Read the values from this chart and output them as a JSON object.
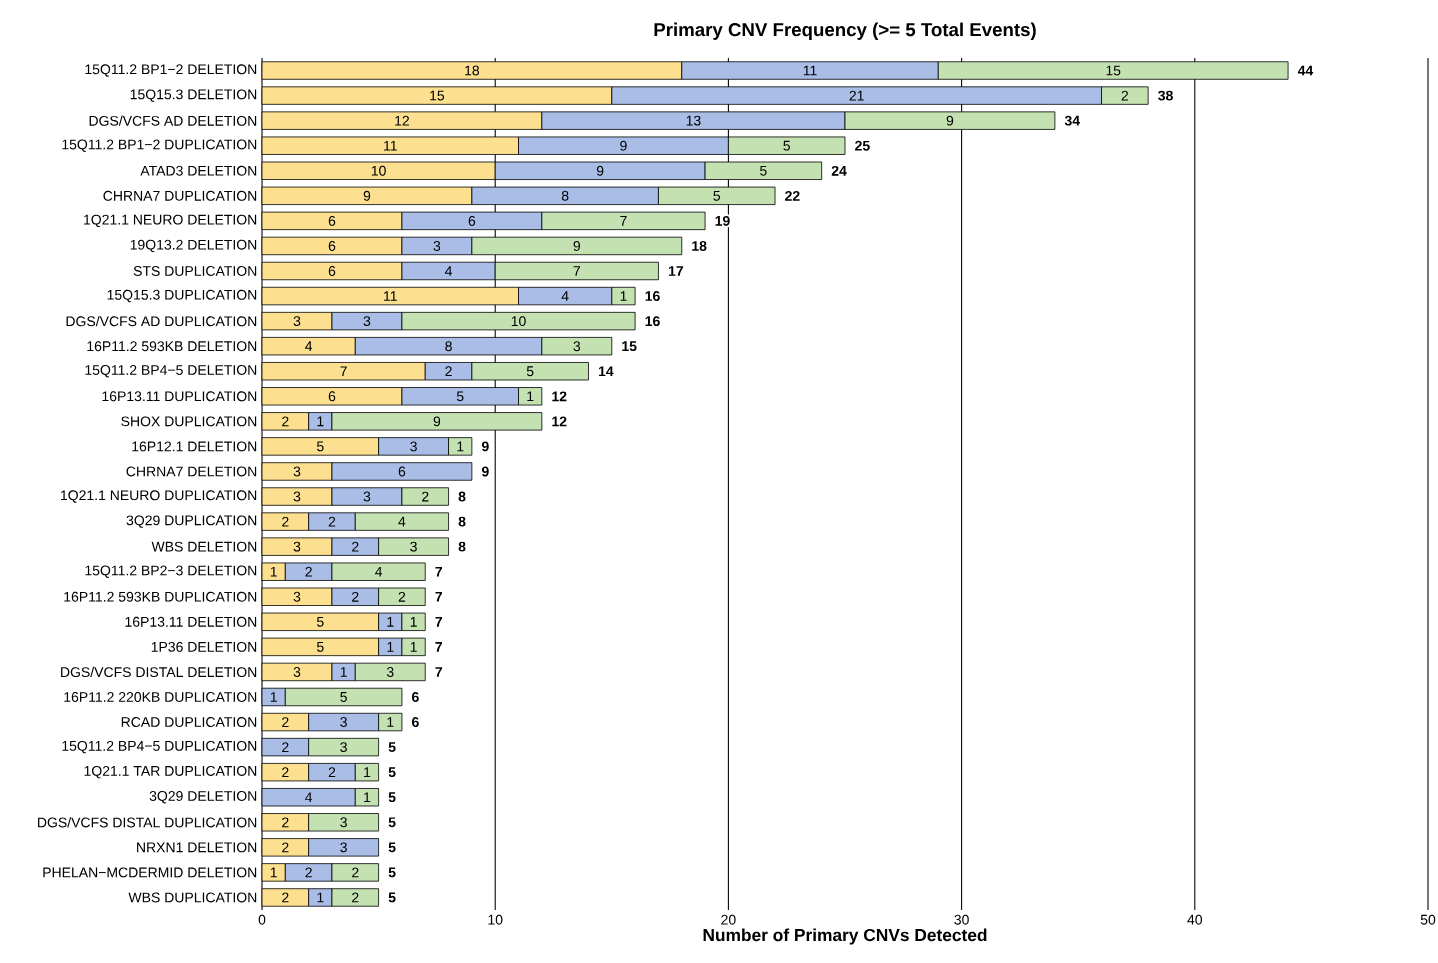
{
  "chart_data": {
    "type": "bar",
    "orientation": "horizontal",
    "stacked": true,
    "title": "Primary CNV Frequency (>= 5 Total Events)",
    "xlabel": "Number of Primary CNVs Detected",
    "categories": [
      "15Q11.2 BP1−2 DELETION",
      "15Q15.3 DELETION",
      "DGS/VCFS AD DELETION",
      "15Q11.2 BP1−2 DUPLICATION",
      "ATAD3 DELETION",
      "CHRNA7 DUPLICATION",
      "1Q21.1 NEURO DELETION",
      "19Q13.2 DELETION",
      "STS DUPLICATION",
      "15Q15.3 DUPLICATION",
      "DGS/VCFS AD DUPLICATION",
      "16P11.2 593KB DELETION",
      "15Q11.2 BP4−5 DELETION",
      "16P13.11 DUPLICATION",
      "SHOX DUPLICATION",
      "16P12.1 DELETION",
      "CHRNA7 DELETION",
      "1Q21.1 NEURO DUPLICATION",
      "3Q29 DUPLICATION",
      "WBS DELETION",
      "15Q11.2 BP2−3 DELETION",
      "16P11.2 593KB DUPLICATION",
      "16P13.11 DELETION",
      "1P36 DELETION",
      "DGS/VCFS DISTAL DELETION",
      "16P11.2 220KB DUPLICATION",
      "RCAD DUPLICATION",
      "15Q11.2 BP4−5 DUPLICATION",
      "1Q21.1 TAR DUPLICATION",
      "3Q29 DELETION",
      "DGS/VCFS DISTAL DUPLICATION",
      "NRXN1 DELETION",
      "PHELAN−MCDERMID DELETION",
      "WBS DUPLICATION"
    ],
    "series": [
      {
        "color": "#fce08f",
        "values": [
          18,
          15,
          12,
          11,
          10,
          9,
          6,
          6,
          6,
          11,
          3,
          4,
          7,
          6,
          2,
          5,
          3,
          3,
          2,
          3,
          1,
          3,
          5,
          5,
          3,
          null,
          2,
          null,
          2,
          null,
          2,
          2,
          1,
          2
        ]
      },
      {
        "color": "#a9bde6",
        "values": [
          11,
          21,
          13,
          9,
          9,
          8,
          6,
          3,
          4,
          4,
          3,
          8,
          2,
          5,
          1,
          3,
          6,
          3,
          2,
          2,
          2,
          2,
          1,
          1,
          1,
          1,
          3,
          2,
          2,
          4,
          null,
          3,
          2,
          1
        ]
      },
      {
        "color": "#c4e1b1",
        "values": [
          15,
          2,
          9,
          5,
          5,
          5,
          7,
          9,
          7,
          1,
          10,
          3,
          5,
          1,
          9,
          1,
          null,
          2,
          4,
          3,
          4,
          2,
          1,
          1,
          3,
          5,
          1,
          3,
          1,
          1,
          3,
          null,
          2,
          2
        ]
      }
    ],
    "totals": [
      "44",
      "38",
      "34",
      "25",
      "24",
      "22",
      "19",
      "18",
      "17",
      "16",
      "16",
      "15",
      "14",
      "12",
      "12",
      "9",
      "9",
      "8",
      "8",
      "8",
      "7",
      "7",
      "7",
      "7",
      "7",
      "6",
      "6",
      "5",
      "5",
      "5",
      "5",
      "5",
      "5",
      "5"
    ],
    "data_labels": true,
    "xlim": [
      0,
      50
    ],
    "xticks": [
      0,
      10,
      20,
      30,
      40,
      50
    ],
    "grid": "x"
  }
}
